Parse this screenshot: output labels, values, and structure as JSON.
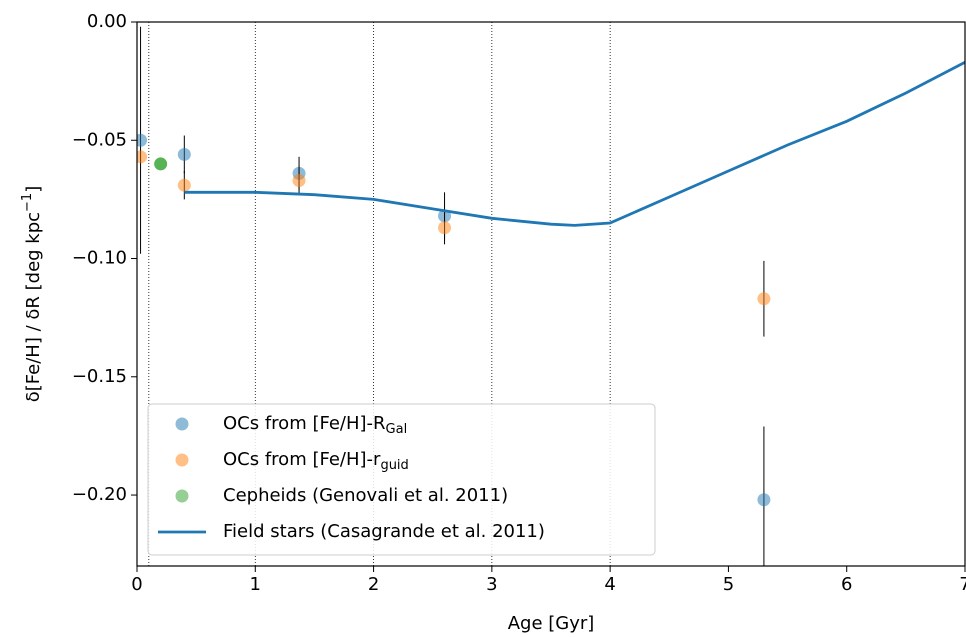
{
  "chart_data": {
    "type": "scatter",
    "x_label": "Age [Gyr]",
    "y_label": [
      "δ[Fe/H] / δR [deg kpc",
      "−1",
      "]"
    ],
    "xlim": [
      0,
      7
    ],
    "ylim": [
      -0.23,
      0
    ],
    "xticks": [
      0,
      1,
      2,
      3,
      4,
      5,
      6,
      7
    ],
    "yticks": [
      {
        "value": -0.2,
        "label": "−0.20"
      },
      {
        "value": -0.15,
        "label": "−0.15"
      },
      {
        "value": -0.1,
        "label": "−0.10"
      },
      {
        "value": -0.05,
        "label": "−0.05"
      },
      {
        "value": 0,
        "label": "0.00"
      }
    ],
    "vlines": [
      0.1,
      1,
      2,
      3,
      4
    ],
    "legend": "lower left",
    "series": [
      {
        "name": [
          "OCs from [Fe/H]-R",
          "Gal"
        ],
        "style": "markers",
        "color": "#1f77b4",
        "x": [
          0.03,
          0.4,
          1.37,
          2.6,
          5.3
        ],
        "values": [
          -0.05,
          -0.056,
          -0.064,
          -0.082,
          -0.202
        ],
        "errors": [
          0.048,
          0.008,
          0.007,
          0.01,
          0.031
        ]
      },
      {
        "name": [
          "OCs from [Fe/H]-r",
          "guid"
        ],
        "style": "markers",
        "color": "#ff7f0e",
        "x": [
          0.03,
          0.4,
          1.37,
          2.6,
          5.3
        ],
        "values": [
          -0.057,
          -0.069,
          -0.067,
          -0.087,
          -0.117
        ],
        "errors": [
          0.003,
          0.006,
          0.006,
          0.007,
          0.016
        ]
      },
      {
        "name": [
          "Cepheids (Genovali et al. 2011)"
        ],
        "style": "markers",
        "color": "#2ca02c",
        "x": [
          0.2
        ],
        "values": [
          -0.06
        ]
      },
      {
        "name": [
          "Field stars (Casagrande et al. 2011)"
        ],
        "style": "line",
        "color": "#1f77b4",
        "x": [
          0.4,
          1,
          1.5,
          2,
          2.5,
          3,
          3.5,
          3.7,
          4,
          4.5,
          5,
          5.5,
          6,
          6.5,
          7
        ],
        "values": [
          -0.072,
          -0.072,
          -0.073,
          -0.075,
          -0.079,
          -0.083,
          -0.0855,
          -0.086,
          -0.085,
          -0.074,
          -0.063,
          -0.052,
          -0.042,
          -0.03,
          -0.017
        ]
      }
    ]
  }
}
